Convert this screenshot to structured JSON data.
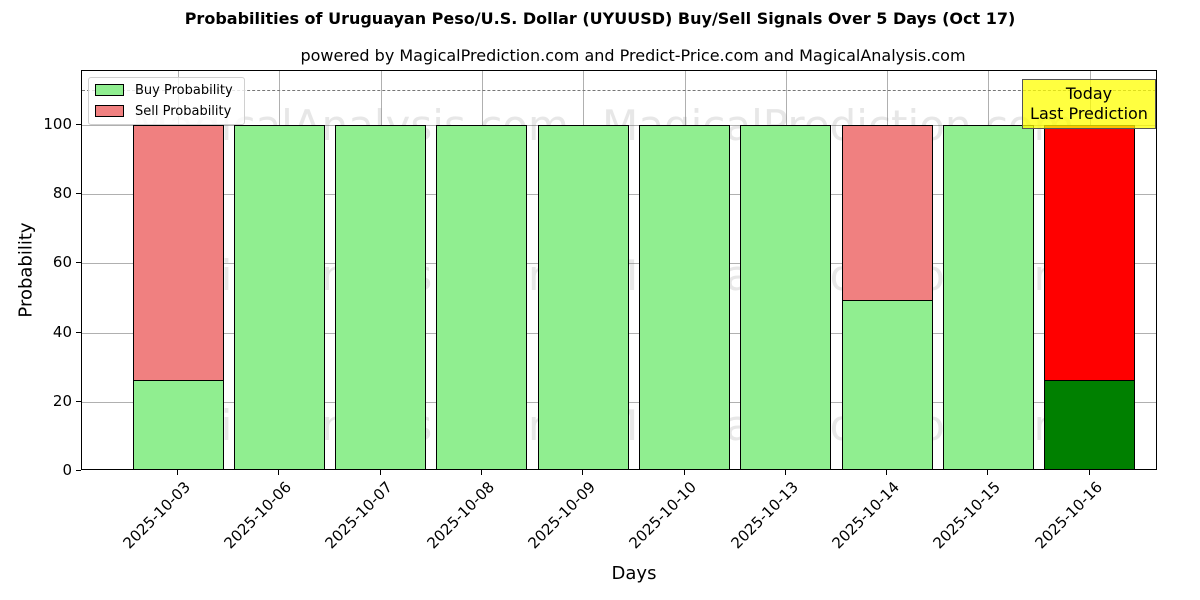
{
  "chart_data": {
    "type": "bar",
    "stacked": true,
    "title": "Probabilities of Uruguayan Peso/U.S. Dollar (UYUUSD) Buy/Sell Signals Over 5 Days (Oct 17)",
    "subtitle": "powered by MagicalPrediction.com and Predict-Price.com and MagicalAnalysis.com",
    "xlabel": "Days",
    "ylabel": "Probability",
    "ylim": [
      0,
      115.6
    ],
    "yticks": [
      0,
      20,
      40,
      60,
      80,
      100
    ],
    "grid": true,
    "legend_position": "upper left",
    "reference_line": {
      "y": 110,
      "style": "dashed"
    },
    "categories": [
      "2025-10-03",
      "2025-10-06",
      "2025-10-07",
      "2025-10-08",
      "2025-10-09",
      "2025-10-10",
      "2025-10-13",
      "2025-10-14",
      "2025-10-15",
      "2025-10-16"
    ],
    "series": [
      {
        "name": "Buy Probability",
        "color": "#90ee90",
        "values": [
          26.3,
          100,
          100,
          100,
          100,
          100,
          100,
          49.4,
          100,
          26.3
        ]
      },
      {
        "name": "Sell Probability",
        "color": "#f08080",
        "values": [
          73.7,
          0,
          0,
          0,
          0,
          0,
          0,
          50.6,
          0,
          73.7
        ]
      }
    ],
    "highlight": {
      "category": "2025-10-16",
      "buy_color": "#008000",
      "sell_color": "#ff0000"
    },
    "annotation": {
      "text_line1": "Today",
      "text_line2": "Last Prediction",
      "color": "#ffff00"
    },
    "watermarks": [
      "MagicalAnalysis.com",
      "MagicalPrediction.com"
    ]
  },
  "legend": {
    "buy": "Buy Probability",
    "sell": "Sell Probability"
  },
  "yticks_labels": [
    "0",
    "20",
    "40",
    "60",
    "80",
    "100"
  ]
}
